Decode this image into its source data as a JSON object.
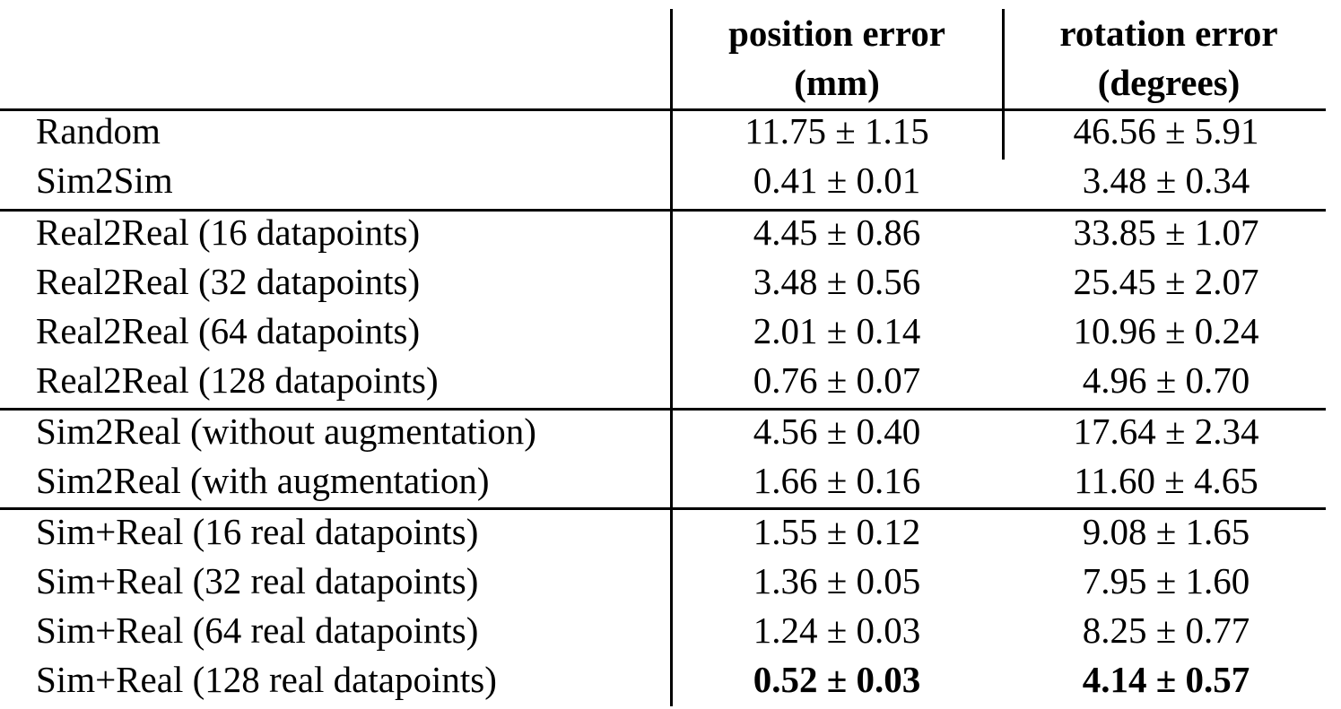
{
  "table": {
    "headers": {
      "position_line1": "position error",
      "position_line2": "(mm)",
      "rotation_line1": "rotation error",
      "rotation_line2": "(degrees)"
    },
    "rows": [
      {
        "method": "Random",
        "position": "11.75 ± 1.15",
        "rotation": "46.56 ± 5.91",
        "bold": false
      },
      {
        "method": "Sim2Sim",
        "position": "0.41 ± 0.01",
        "rotation": "3.48 ± 0.34",
        "bold": false
      },
      {
        "method": "Real2Real (16 datapoints)",
        "position": "4.45 ± 0.86",
        "rotation": "33.85 ± 1.07",
        "bold": false
      },
      {
        "method": "Real2Real (32 datapoints)",
        "position": "3.48 ± 0.56",
        "rotation": "25.45 ± 2.07",
        "bold": false
      },
      {
        "method": "Real2Real (64 datapoints)",
        "position": "2.01 ± 0.14",
        "rotation": "10.96 ± 0.24",
        "bold": false
      },
      {
        "method": "Real2Real (128 datapoints)",
        "position": "0.76 ± 0.07",
        "rotation": "4.96 ± 0.70",
        "bold": false
      },
      {
        "method": "Sim2Real (without augmentation)",
        "position": "4.56 ± 0.40",
        "rotation": "17.64 ± 2.34",
        "bold": false
      },
      {
        "method": "Sim2Real (with augmentation)",
        "position": "1.66 ± 0.16",
        "rotation": "11.60 ± 4.65",
        "bold": false
      },
      {
        "method": "Sim+Real (16 real datapoints)",
        "position": "1.55 ± 0.12",
        "rotation": "9.08 ± 1.65",
        "bold": false
      },
      {
        "method": "Sim+Real (32 real datapoints)",
        "position": "1.36 ± 0.05",
        "rotation": "7.95 ± 1.60",
        "bold": false
      },
      {
        "method": "Sim+Real (64 real datapoints)",
        "position": "1.24 ± 0.03",
        "rotation": "8.25 ± 0.77",
        "bold": false
      },
      {
        "method": "Sim+Real (128 real datapoints)",
        "position": "0.52 ± 0.03",
        "rotation": "4.14 ± 0.57",
        "bold": true
      }
    ]
  }
}
